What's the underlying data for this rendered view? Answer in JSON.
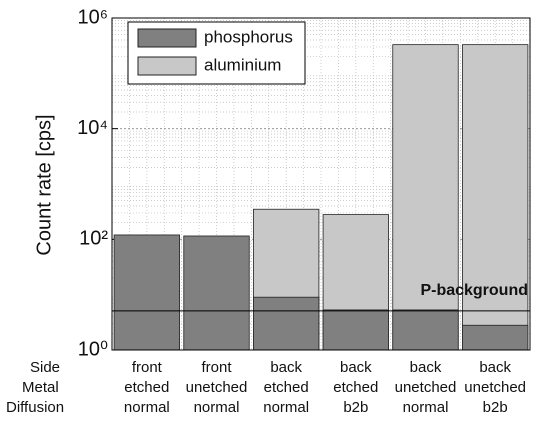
{
  "chart_data": {
    "type": "bar",
    "log_scale": true,
    "grid": true,
    "legend": "upper left",
    "y_label": "Count rate [cps]",
    "row_labels": [
      "Side",
      "Metal",
      "Diffusion"
    ],
    "categories": [
      [
        "front",
        "etched",
        "normal"
      ],
      [
        "front",
        "unetched",
        "normal"
      ],
      [
        "back",
        "etched",
        "normal"
      ],
      [
        "back",
        "etched",
        "b2b"
      ],
      [
        "back",
        "unetched",
        "normal"
      ],
      [
        "back",
        "unetched",
        "b2b"
      ]
    ],
    "series": [
      {
        "name": "phosphorus",
        "color": "#808080",
        "values": [
          120,
          115,
          9,
          5.3,
          5.3,
          2.8
        ]
      },
      {
        "name": "aluminium",
        "color": "#c8c8c8",
        "values": [
          null,
          null,
          350,
          280,
          330000,
          330000
        ]
      }
    ],
    "ylim": [
      1,
      1000000
    ],
    "yticks": [
      {
        "value": 1,
        "label": "10⁰"
      },
      {
        "value": 100,
        "label": "10²"
      },
      {
        "value": 10000,
        "label": "10⁴"
      },
      {
        "value": 1000000,
        "label": "10⁶"
      }
    ],
    "reference_line": {
      "label": "P-background",
      "value": 5.1
    }
  }
}
